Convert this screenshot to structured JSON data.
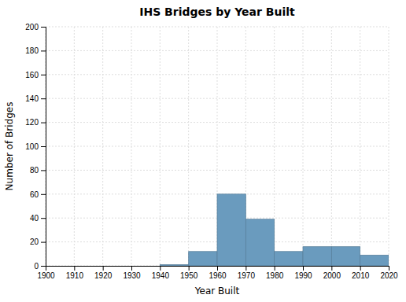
{
  "chart_data": {
    "type": "histogram",
    "title": "IHS Bridges by Year Built",
    "xlabel": "Year Built",
    "ylabel": "Number of Bridges",
    "bins": [
      1940,
      1950,
      1960,
      1970,
      1980,
      1990,
      2000,
      2010,
      2020
    ],
    "values": [
      1,
      12,
      60,
      39,
      12,
      16,
      16,
      9
    ],
    "color": "#6a9bbe",
    "xlim": [
      1900,
      2020
    ],
    "ylim": [
      0,
      200
    ],
    "xticks": [
      1900,
      1910,
      1920,
      1930,
      1940,
      1950,
      1960,
      1970,
      1980,
      1990,
      2000,
      2010,
      2020
    ],
    "yticks": [
      0,
      20,
      40,
      60,
      80,
      100,
      120,
      140,
      160,
      180,
      200
    ],
    "grid": true
  }
}
